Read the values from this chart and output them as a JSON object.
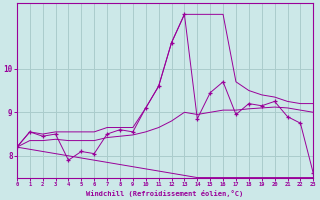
{
  "xlabel": "Windchill (Refroidissement éolien,°C)",
  "background_color": "#cce8e8",
  "grid_color": "#aacccc",
  "line_color": "#990099",
  "hours": [
    0,
    1,
    2,
    3,
    4,
    5,
    6,
    7,
    8,
    9,
    10,
    11,
    12,
    13,
    14,
    15,
    16,
    17,
    18,
    19,
    20,
    21,
    22,
    23
  ],
  "windchill": [
    8.2,
    8.55,
    8.45,
    8.5,
    7.9,
    8.1,
    8.05,
    8.5,
    8.6,
    8.55,
    9.1,
    9.6,
    10.6,
    11.25,
    8.85,
    9.45,
    9.7,
    8.95,
    9.2,
    9.15,
    9.25,
    8.9,
    8.75,
    7.6
  ],
  "min_line": [
    8.2,
    8.15,
    8.1,
    8.05,
    8.0,
    7.95,
    7.9,
    7.85,
    7.8,
    7.75,
    7.7,
    7.65,
    7.6,
    7.55,
    7.5,
    7.5,
    7.5,
    7.5,
    7.5,
    7.5,
    7.5,
    7.5,
    7.5,
    7.5
  ],
  "max_line": [
    8.2,
    8.55,
    8.5,
    8.55,
    8.55,
    8.55,
    8.55,
    8.65,
    8.65,
    8.65,
    9.1,
    9.6,
    10.6,
    11.25,
    11.25,
    11.25,
    11.25,
    9.7,
    9.5,
    9.4,
    9.35,
    9.25,
    9.2,
    9.2
  ],
  "avg_line": [
    8.2,
    8.35,
    8.35,
    8.38,
    8.35,
    8.35,
    8.35,
    8.42,
    8.45,
    8.48,
    8.55,
    8.65,
    8.8,
    9.0,
    8.95,
    9.0,
    9.05,
    9.05,
    9.08,
    9.1,
    9.12,
    9.1,
    9.05,
    9.0
  ],
  "ylim": [
    7.5,
    11.5
  ],
  "yticks": [
    8,
    9,
    10
  ],
  "xlim": [
    0,
    23
  ]
}
